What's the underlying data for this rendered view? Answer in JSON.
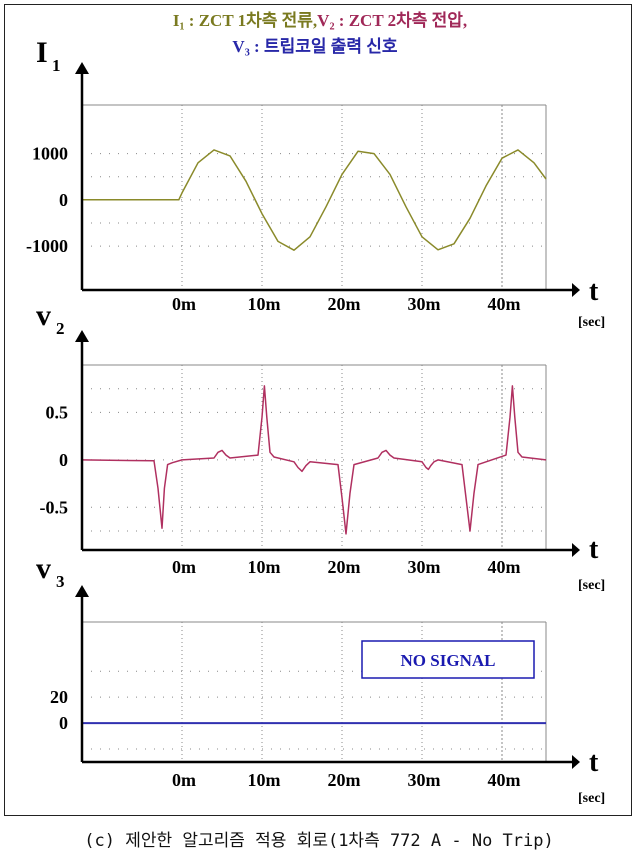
{
  "figure": {
    "legend_i1": "I₁ : ZCT 1차측 전류,",
    "legend_v2": "V₂ : ZCT 2차측 전압,",
    "legend_v3": "V₃ : 트립코일 출력 신호",
    "caption": "(c) 제안한 알고리즘 적용 회로(1차측 772 A - No Trip)"
  },
  "colors": {
    "i1": "#8a8a2a",
    "v2": "#b03060",
    "v3": "#3030b0",
    "axis": "#000000",
    "grid": "#888888"
  },
  "chart_data": [
    {
      "type": "line",
      "ylabel_main": "I",
      "ylabel_sub": "1",
      "xlabel": "t",
      "xunit": "[sec]",
      "xticks": [
        "0m",
        "10m",
        "20m",
        "30m",
        "40m"
      ],
      "yticks": [
        "1000",
        "0",
        "-1000"
      ],
      "ylim": [
        -1950,
        2050
      ],
      "xlim": [
        -0.0125,
        0.0455
      ],
      "series": [
        {
          "x": [
            -0.0125,
            -0.0004,
            0.0,
            0.002,
            0.004,
            0.006,
            0.008,
            0.01,
            0.012,
            0.014,
            0.016,
            0.018,
            0.02,
            0.022,
            0.024,
            0.026,
            0.028,
            0.03,
            0.032,
            0.034,
            0.036,
            0.038,
            0.04,
            0.042,
            0.044,
            0.0455
          ],
          "y": [
            0,
            0,
            150,
            800,
            1080,
            950,
            400,
            -300,
            -900,
            -1090,
            -800,
            -150,
            550,
            1050,
            1000,
            550,
            -150,
            -800,
            -1080,
            -950,
            -400,
            300,
            900,
            1080,
            800,
            450
          ]
        }
      ]
    },
    {
      "type": "line",
      "ylabel_main": "v",
      "ylabel_sub": "2",
      "xlabel": "t",
      "xunit": "[sec]",
      "xticks": [
        "0m",
        "10m",
        "20m",
        "30m",
        "40m"
      ],
      "yticks": [
        "0.5",
        "0",
        "-0.5"
      ],
      "ylim": [
        -0.95,
        1.0
      ],
      "xlim": [
        -0.0125,
        0.0455
      ],
      "series": [
        {
          "x": [
            -0.0125,
            -0.0035,
            -0.003,
            -0.0025,
            -0.0022,
            -0.0018,
            -0.0012,
            0.0,
            0.004,
            0.0045,
            0.005,
            0.0055,
            0.006,
            0.0095,
            0.01,
            0.0103,
            0.0106,
            0.011,
            0.0115,
            0.014,
            0.0145,
            0.015,
            0.0155,
            0.016,
            0.0195,
            0.02,
            0.0205,
            0.021,
            0.0215,
            0.0245,
            0.025,
            0.0255,
            0.026,
            0.0265,
            0.03,
            0.0305,
            0.0308,
            0.0311,
            0.0315,
            0.032,
            0.035,
            0.0355,
            0.036,
            0.0365,
            0.037,
            0.0405,
            0.041,
            0.0413,
            0.0416,
            0.042,
            0.0425,
            0.0455
          ],
          "y": [
            0,
            -0.01,
            -0.3,
            -0.72,
            -0.3,
            -0.05,
            -0.03,
            0,
            0.02,
            0.08,
            0.1,
            0.05,
            0.02,
            0.05,
            0.45,
            0.78,
            0.45,
            0.08,
            0.03,
            -0.02,
            -0.08,
            -0.12,
            -0.06,
            -0.02,
            -0.05,
            -0.4,
            -0.78,
            -0.35,
            -0.05,
            0.02,
            0.08,
            0.1,
            0.05,
            0.02,
            -0.02,
            -0.08,
            -0.1,
            -0.06,
            -0.02,
            0,
            -0.05,
            -0.4,
            -0.75,
            -0.35,
            -0.05,
            0.05,
            0.45,
            0.78,
            0.45,
            0.08,
            0.03,
            0
          ]
        }
      ]
    },
    {
      "type": "line",
      "ylabel_main": "v",
      "ylabel_sub": "3",
      "xlabel": "t",
      "xunit": "[sec]",
      "xticks": [
        "0m",
        "10m",
        "20m",
        "30m",
        "40m"
      ],
      "yticks": [
        "20",
        "0"
      ],
      "ylim": [
        -30,
        78
      ],
      "xlim": [
        -0.0125,
        0.0455
      ],
      "annotation": "NO SIGNAL",
      "series": [
        {
          "x": [
            -0.0125,
            0.0455
          ],
          "y": [
            0,
            0
          ]
        }
      ]
    }
  ]
}
